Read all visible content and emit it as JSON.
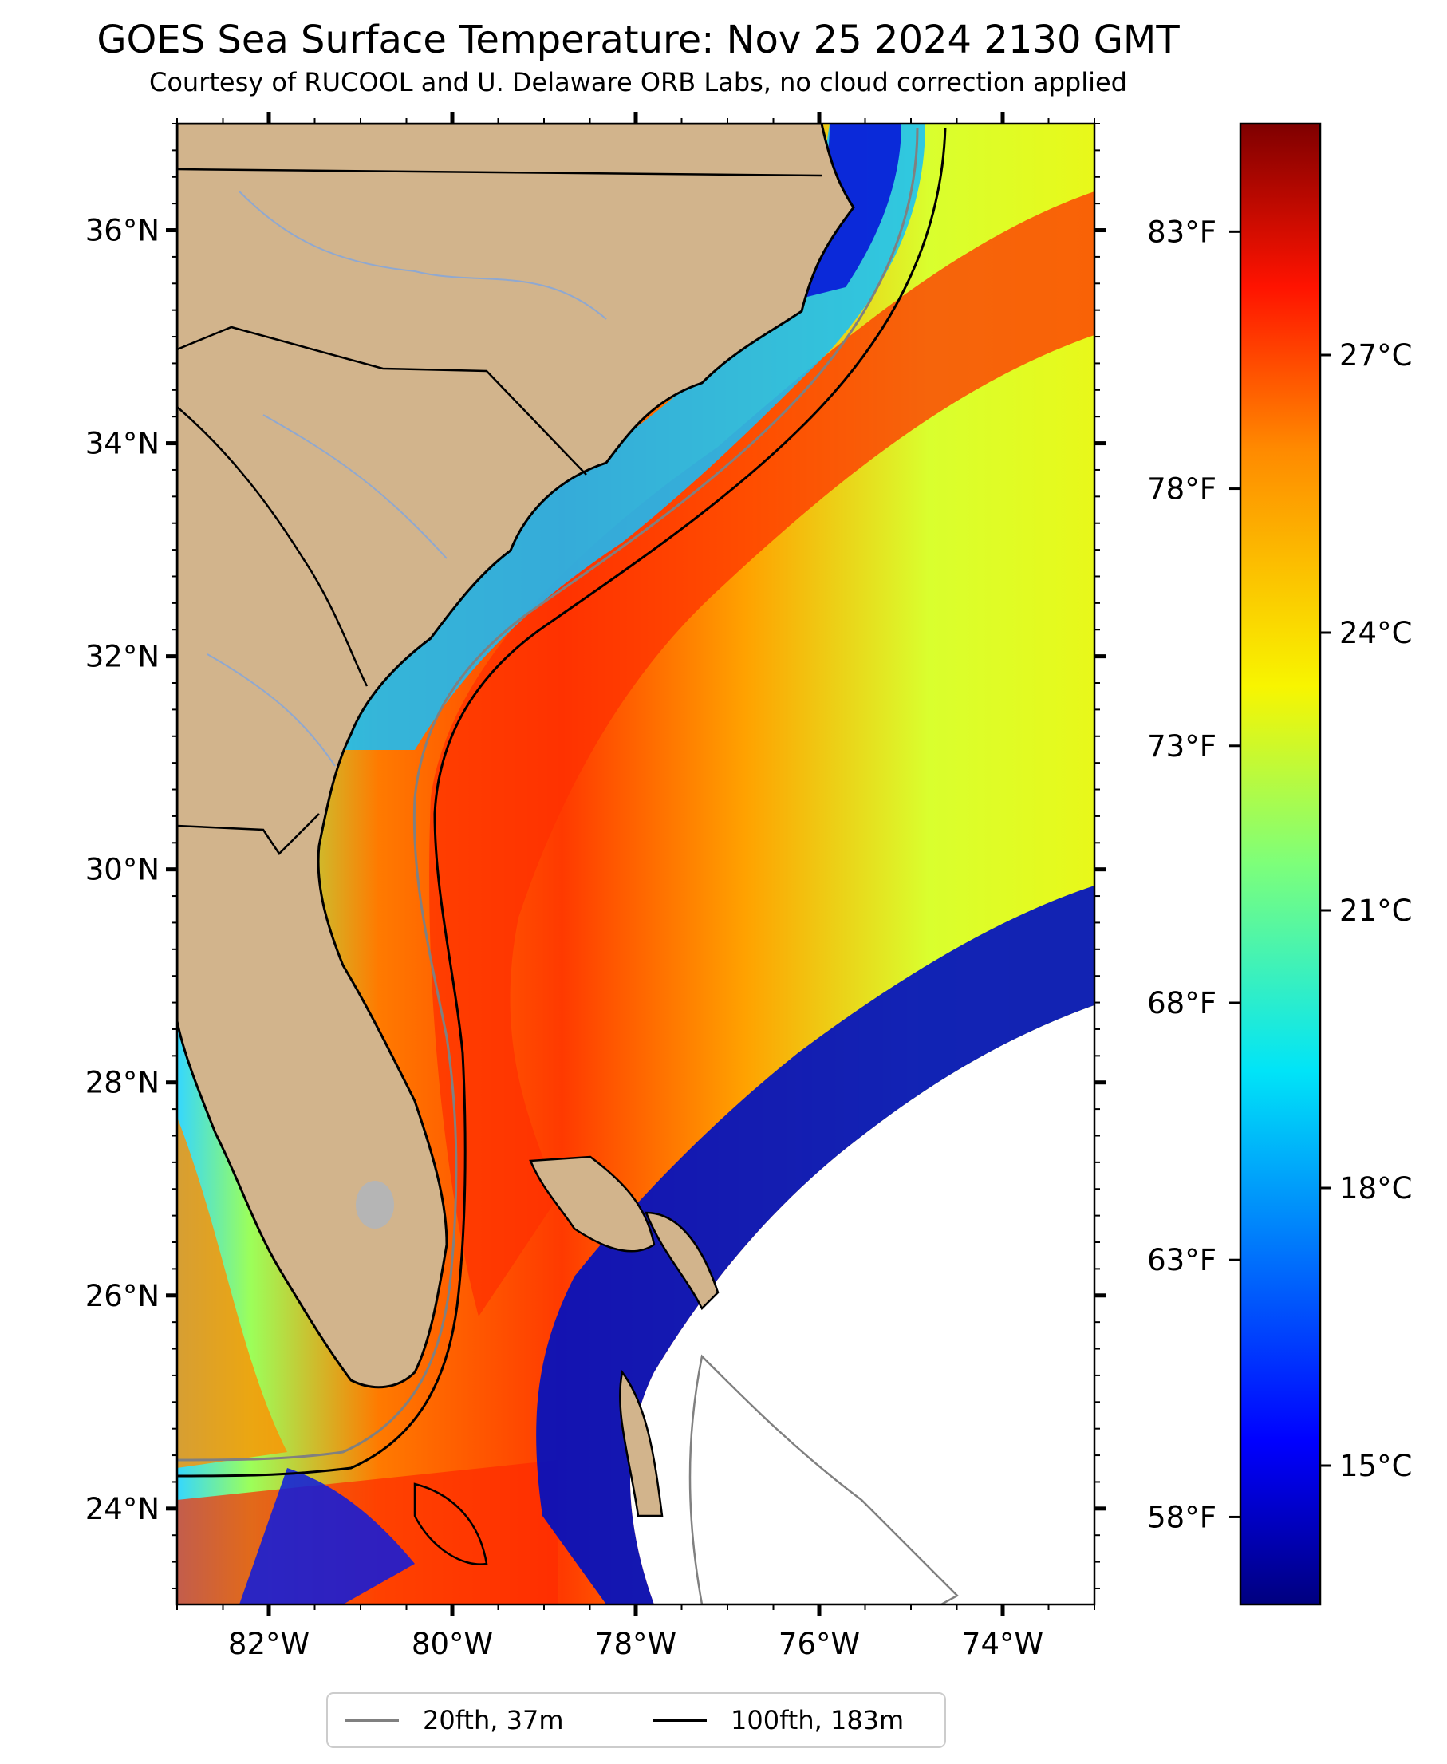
{
  "title": "GOES Sea Surface Temperature: Nov 25 2024 2130 GMT",
  "subtitle": "Courtesy of RUCOOL and U. Delaware ORB Labs, no cloud correction applied",
  "map": {
    "lon_range": [
      -83,
      -73
    ],
    "lat_range": [
      23.1,
      37.0
    ],
    "lon_tick_labels": [
      "82°W",
      "80°W",
      "78°W",
      "76°W",
      "74°W"
    ],
    "lat_tick_labels": [
      "24°N",
      "26°N",
      "28°N",
      "30°N",
      "32°N",
      "34°N",
      "36°N"
    ],
    "land_color": "#d2b48c",
    "no_data_color": "#ffffff"
  },
  "colorbar": {
    "colormap": "jet",
    "range_c": [
      13.5,
      29.5
    ],
    "celsius_labels": [
      "15°C",
      "18°C",
      "21°C",
      "24°C",
      "27°C"
    ],
    "fahrenheit_labels": [
      "58°F",
      "63°F",
      "68°F",
      "73°F",
      "78°F",
      "83°F"
    ]
  },
  "legend": {
    "location": "bottom-center",
    "items": [
      {
        "label": "20fth, 37m",
        "color": "#808080"
      },
      {
        "label": "100fth, 183m",
        "color": "#000000"
      }
    ]
  }
}
